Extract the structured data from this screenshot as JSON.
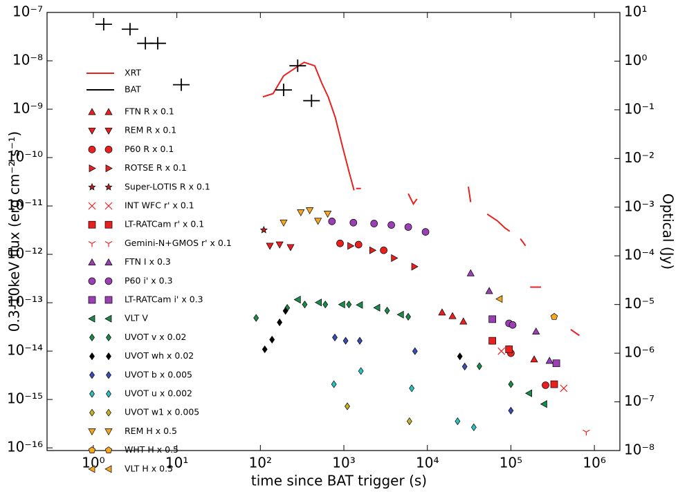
{
  "chart_data": {
    "type": "scatter",
    "xlabel": "time since BAT trigger (s)",
    "ylabel": "0.3-10keV flux (erg cm⁻² s⁻¹)",
    "y2label": "Optical (Jy)",
    "xscale": "log",
    "yscale": "log",
    "xlim": [
      0.279,
      2020000
    ],
    "ylim": [
      8.8e-17,
      1e-07
    ],
    "y2lim": [
      1e-08,
      10
    ],
    "xticks": [
      {
        "value": 1,
        "label": "10⁰"
      },
      {
        "value": 10,
        "label": "10¹"
      },
      {
        "value": 100,
        "label": "10²"
      },
      {
        "value": 1000,
        "label": "10³"
      },
      {
        "value": 10000,
        "label": "10⁴"
      },
      {
        "value": 100000,
        "label": "10⁵"
      },
      {
        "value": 1000000,
        "label": "10⁶"
      }
    ],
    "yticks": [
      {
        "value": 1e-16,
        "label": "10⁻¹⁶"
      },
      {
        "value": 1e-15,
        "label": "10⁻¹⁵"
      },
      {
        "value": 1e-14,
        "label": "10⁻¹⁴"
      },
      {
        "value": 1e-13,
        "label": "10⁻¹³"
      },
      {
        "value": 1e-12,
        "label": "10⁻¹²"
      },
      {
        "value": 1e-11,
        "label": "10⁻¹¹"
      },
      {
        "value": 1e-10,
        "label": "10⁻¹⁰"
      },
      {
        "value": 1e-09,
        "label": "10⁻⁹"
      },
      {
        "value": 1e-08,
        "label": "10⁻⁸"
      },
      {
        "value": 1e-07,
        "label": "10⁻⁷"
      }
    ],
    "y2ticks": [
      {
        "value": 1e-08,
        "label": "10⁻⁸"
      },
      {
        "value": 1e-07,
        "label": "10⁻⁷"
      },
      {
        "value": 1e-06,
        "label": "10⁻⁶"
      },
      {
        "value": 1e-05,
        "label": "10⁻⁵"
      },
      {
        "value": 0.0001,
        "label": "10⁻⁴"
      },
      {
        "value": 0.001,
        "label": "10⁻³"
      },
      {
        "value": 0.01,
        "label": "10⁻²"
      },
      {
        "value": 0.1,
        "label": "10⁻¹"
      },
      {
        "value": 1,
        "label": "10⁰"
      },
      {
        "value": 10,
        "label": "10¹"
      }
    ],
    "series": [
      {
        "name": "XRT",
        "color": "#e8211f",
        "marker": "line",
        "axis": "y",
        "x": [
          107,
          142,
          190,
          253,
          335,
          448,
          542,
          650,
          790,
          955,
          1160,
          1325,
          1360,
          1400,
          1600,
          3000,
          5900,
          6800,
          7500,
          15000,
          31000,
          33000,
          40000,
          52000,
          69000,
          85000,
          97000,
          110000,
          130000,
          150000,
          160000,
          170000,
          230000,
          300000,
          520000,
          660000
        ],
        "values": [
          1.8e-09,
          2.1e-09,
          4.9e-09,
          6.8e-09,
          9.3e-09,
          7.9e-09,
          3.5e-09,
          1.8e-09,
          6.7e-10,
          1.8e-10,
          4.9e-11,
          2.1e-11,
          null,
          2.3e-11,
          2.3e-11,
          null,
          1.8e-11,
          1.1e-11,
          1.4e-11,
          null,
          2.5e-11,
          1.2e-11,
          null,
          6.8e-12,
          4.9e-12,
          3.5e-12,
          3e-12,
          null,
          2.1e-12,
          1.5e-12,
          null,
          2.1e-13,
          2.1e-13,
          null,
          2.8e-14,
          2.1e-14
        ]
      },
      {
        "name": "BAT",
        "color": "#000000",
        "marker": "+",
        "axis": "y",
        "x": [
          1.33,
          2.75,
          4.2,
          5.9,
          11.3,
          190,
          280,
          410
        ],
        "values": [
          5.7e-08,
          4.5e-08,
          2.3e-08,
          2.3e-08,
          3.2e-09,
          2.5e-09,
          7.9e-09,
          1.5e-09
        ]
      },
      {
        "name": "FTN R x 0.1",
        "color": "#e8211f",
        "marker": "^",
        "axis": "y2",
        "x": [
          15000,
          20000,
          27000,
          190000
        ],
        "values": [
          6.9e-06,
          5.8e-06,
          4.5e-06,
          7.5e-07
        ]
      },
      {
        "name": "REM R x 0.1",
        "color": "#e8211f",
        "marker": "v",
        "axis": "y2",
        "x": [
          130,
          170,
          230
        ],
        "values": [
          0.00016,
          0.00017,
          0.00015
        ]
      },
      {
        "name": "P60 R x 0.1",
        "color": "#e8211f",
        "marker": "o",
        "axis": "y2",
        "x": [
          900,
          1500,
          3000,
          95000,
          100000,
          260000
        ],
        "values": [
          0.00018,
          0.00017,
          0.00013,
          1.2e-06,
          1e-06,
          2.2e-07
        ]
      },
      {
        "name": "ROTSE R x 0.1",
        "color": "#e8211f",
        "marker": ">",
        "axis": "y2",
        "x": [
          1200,
          2200,
          4000,
          7000
        ],
        "values": [
          0.00016,
          0.00013,
          9e-05,
          6e-05
        ]
      },
      {
        "name": "Super-LOTIS R x 0.1",
        "color": "#b22222",
        "marker": "*",
        "axis": "y2",
        "x": [
          110
        ],
        "values": [
          0.00034
        ]
      },
      {
        "name": "INT WFC r' x 0.1",
        "color": "#e8211f",
        "marker": "x",
        "axis": "y2",
        "x": [
          77000,
          430000
        ],
        "values": [
          1.1e-06,
          1.9e-07
        ]
      },
      {
        "name": "LT-RATCam r' x 0.1",
        "color": "#e8211f",
        "marker": "s",
        "axis": "y2",
        "x": [
          60000,
          95000,
          330000
        ],
        "values": [
          1.8e-06,
          1.2e-06,
          2.3e-07
        ]
      },
      {
        "name": "Gemini-N+GMOS r' x 0.1",
        "color": "#e8211f",
        "marker": "Y",
        "axis": "y2",
        "x": [
          800000
        ],
        "values": [
          2.4e-08
        ]
      },
      {
        "name": "FTN I x 0.3",
        "color": "#9b3fb5",
        "marker": "^",
        "axis": "y2",
        "x": [
          33000,
          55000,
          200000,
          290000
        ],
        "values": [
          4.4e-05,
          1.9e-05,
          2.8e-06,
          7e-07
        ]
      },
      {
        "name": "P60 i' x 0.3",
        "color": "#9b3fb5",
        "marker": "o",
        "axis": "y2",
        "x": [
          720,
          1300,
          2300,
          3700,
          5900,
          9500,
          95000,
          105000
        ],
        "values": [
          0.00051,
          0.00048,
          0.00046,
          0.00043,
          0.00039,
          0.00031,
          4.1e-06,
          3.8e-06
        ]
      },
      {
        "name": "LT-RATCam i' x 0.3",
        "color": "#9b3fb5",
        "marker": "s",
        "axis": "y2",
        "x": [
          60000,
          350000
        ],
        "values": [
          5e-06,
          6.2e-07
        ]
      },
      {
        "name": "VLT V",
        "color": "#1b8a4a",
        "marker": "<",
        "axis": "y2",
        "x": [
          280,
          500,
          950,
          1550,
          2500,
          4800,
          165000,
          250000
        ],
        "values": [
          1.26e-05,
          1.1e-05,
          1e-05,
          9.8e-06,
          8.6e-06,
          6.2e-06,
          1.5e-07,
          9e-08
        ]
      },
      {
        "name": "UVOT v x 0.02",
        "color": "#1b8a4a",
        "marker": "D",
        "axis": "y2",
        "x": [
          89,
          210,
          340,
          600,
          1150,
          3300,
          5900,
          42000,
          100000
        ],
        "values": [
          5.3e-06,
          8.5e-06,
          1e-05,
          1e-05,
          1e-05,
          7.5e-06,
          5.6e-06,
          5.4e-07,
          2.3e-07
        ]
      },
      {
        "name": "UVOT wh x 0.02",
        "color": "#000000",
        "marker": "D",
        "axis": "y2",
        "x": [
          113,
          138,
          170,
          200,
          24500
        ],
        "values": [
          1.2e-06,
          1.9e-06,
          4.3e-06,
          7.4e-06,
          8.6e-07
        ]
      },
      {
        "name": "UVOT b x 0.005",
        "color": "#3a4db0",
        "marker": "D",
        "axis": "y2",
        "x": [
          780,
          1050,
          1550,
          7100,
          28000,
          100000
        ],
        "values": [
          2.1e-06,
          1.8e-06,
          1.8e-06,
          1.1e-06,
          5.3e-07,
          6.6e-08
        ]
      },
      {
        "name": "UVOT u x 0.002",
        "color": "#2cc1c1",
        "marker": "D",
        "axis": "y2",
        "x": [
          760,
          1600,
          6500,
          23000,
          36000
        ],
        "values": [
          2.3e-07,
          4.3e-07,
          1.9e-07,
          4e-08,
          3e-08
        ]
      },
      {
        "name": "UVOT w1 x 0.005",
        "color": "#c8b02a",
        "marker": "D",
        "axis": "y2",
        "x": [
          1100,
          6100
        ],
        "values": [
          8.1e-08,
          4e-08
        ]
      },
      {
        "name": "REM H x 0.5",
        "color": "#f5a623",
        "marker": "v",
        "axis": "y2",
        "x": [
          190,
          305,
          390,
          490,
          640
        ],
        "values": [
          0.00048,
          0.00078,
          0.00086,
          0.00052,
          0.00073
        ]
      },
      {
        "name": "WHT H x 0.5",
        "color": "#f5a623",
        "marker": "p",
        "axis": "y2",
        "x": [
          330000
        ],
        "values": [
          5.6e-06
        ]
      },
      {
        "name": "VLT H x 0.5",
        "color": "#f5a623",
        "marker": "<",
        "axis": "y2",
        "x": [
          73000
        ],
        "values": [
          1.3e-05
        ]
      }
    ]
  }
}
